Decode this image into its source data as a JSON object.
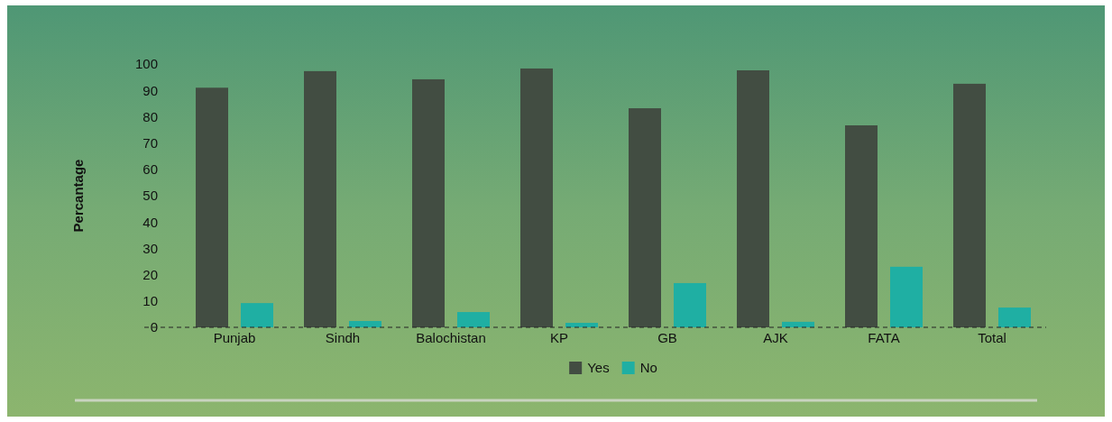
{
  "chart_data": {
    "type": "bar",
    "ylabel": "Percantage",
    "categories": [
      "Punjab",
      "Sindh",
      "Balochistan",
      "KP",
      "GB",
      "AJK",
      "FATA",
      "Total"
    ],
    "series": [
      {
        "name": "Yes",
        "color": "#424d42",
        "values": [
          91,
          97.3,
          94.2,
          98.3,
          83.2,
          97.6,
          76.7,
          92.5
        ]
      },
      {
        "name": "No",
        "color": "#1fafa3",
        "values": [
          9.2,
          2.4,
          5.8,
          1.7,
          16.8,
          2.1,
          23,
          7.5
        ]
      }
    ],
    "ylim": [
      0,
      100
    ],
    "yticks": [
      0,
      10,
      20,
      30,
      40,
      50,
      60,
      70,
      80,
      90,
      100
    ],
    "grid": false,
    "legend": "bottom"
  }
}
